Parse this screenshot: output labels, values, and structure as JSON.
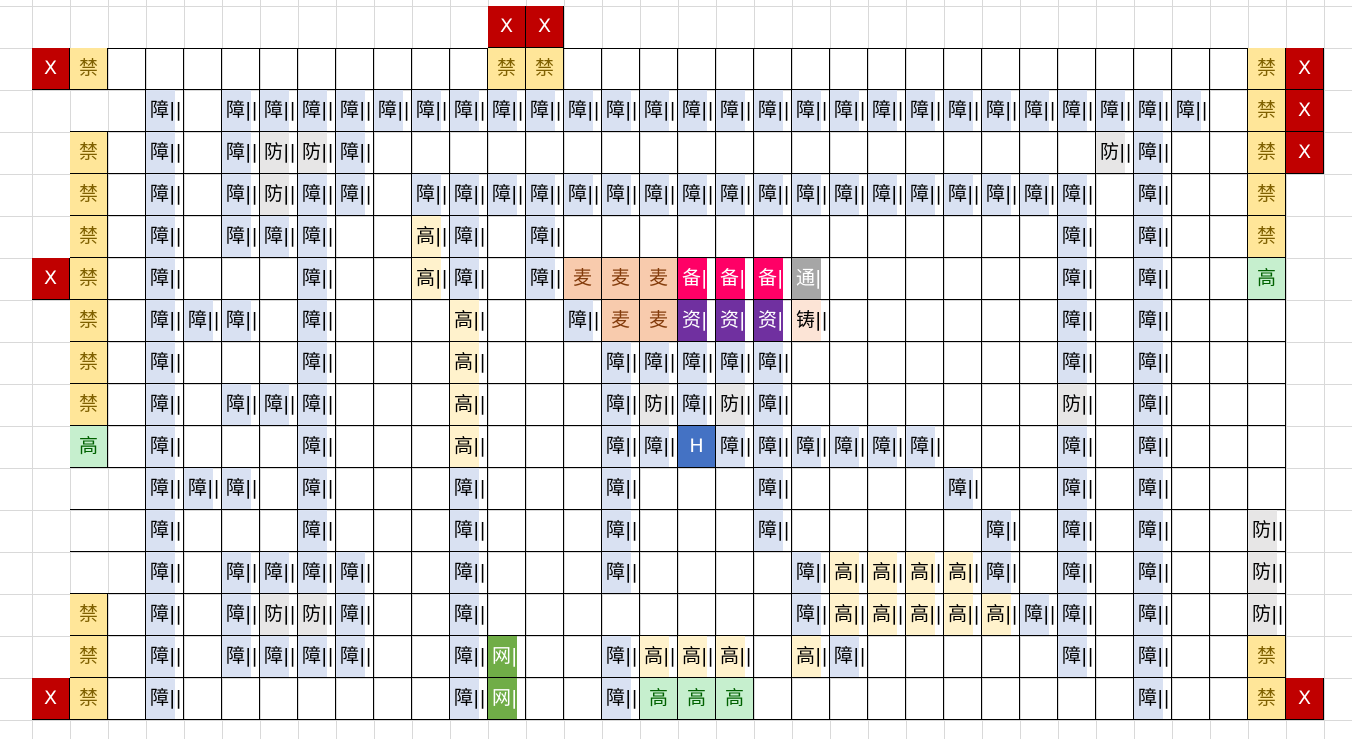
{
  "grid": {
    "cols": 34,
    "rows": [
      {
        "row": 0,
        "cells": {
          "12": "X",
          "13": "X"
        }
      },
      {
        "row": 1,
        "cells": {
          "0": "X",
          "1": "禁",
          "12": "禁",
          "13": "禁",
          "32": "禁",
          "33": "X"
        }
      },
      {
        "row": 2,
        "cells": {
          "3": "障",
          "5": "障",
          "6": "障",
          "7": "障",
          "8": "障",
          "9": "障",
          "10": "障",
          "11": "障",
          "12": "障",
          "13": "障",
          "14": "障",
          "15": "障",
          "16": "障",
          "17": "障",
          "18": "障",
          "19": "障",
          "20": "障",
          "21": "障",
          "22": "障",
          "23": "障",
          "24": "障",
          "25": "障",
          "26": "障",
          "27": "障",
          "28": "障",
          "29": "障",
          "30": "障",
          "32": "禁",
          "33": "X"
        }
      },
      {
        "row": 3,
        "cells": {
          "1": "禁",
          "3": "障",
          "5": "障",
          "6": "防",
          "7": "防",
          "8": "障",
          "28": "防",
          "29": "障",
          "32": "禁",
          "33": "X"
        }
      },
      {
        "row": 4,
        "cells": {
          "1": "禁",
          "3": "障",
          "5": "障",
          "6": "防",
          "7": "障",
          "8": "障",
          "10": "障",
          "11": "障",
          "12": "障",
          "13": "障",
          "14": "障",
          "15": "障",
          "16": "障",
          "17": "障",
          "18": "障",
          "19": "障",
          "20": "障",
          "21": "障",
          "22": "障",
          "23": "障",
          "24": "障",
          "25": "障",
          "26": "障",
          "27": "障",
          "29": "障",
          "32": "禁"
        }
      },
      {
        "row": 5,
        "cells": {
          "1": "禁",
          "3": "障",
          "5": "障",
          "6": "障",
          "7": "障",
          "10": "高",
          "11": "障",
          "13": "障",
          "27": "障",
          "29": "障",
          "32": "禁"
        }
      },
      {
        "row": 6,
        "cells": {
          "0": "X",
          "1": "禁",
          "3": "障",
          "7": "障",
          "10": "高",
          "11": "障",
          "13": "障",
          "14": "麦",
          "15": "麦",
          "16": "麦",
          "17": "备",
          "18": "备",
          "19": "备",
          "20": "通",
          "27": "障",
          "29": "障",
          "32": "高"
        }
      },
      {
        "row": 7,
        "cells": {
          "1": "禁",
          "3": "障",
          "4": "障",
          "5": "障",
          "7": "障",
          "11": "高",
          "14": "障",
          "15": "麦",
          "16": "麦",
          "17": "资",
          "18": "资",
          "19": "资",
          "20": "铸",
          "27": "障",
          "29": "障"
        }
      },
      {
        "row": 8,
        "cells": {
          "1": "禁",
          "3": "障",
          "7": "障",
          "11": "高",
          "15": "障",
          "16": "障",
          "17": "障",
          "18": "障",
          "19": "障",
          "27": "障",
          "29": "障"
        }
      },
      {
        "row": 9,
        "cells": {
          "1": "禁",
          "3": "障",
          "5": "障",
          "6": "障",
          "7": "障",
          "11": "高",
          "15": "障",
          "16": "防",
          "17": "障",
          "18": "防",
          "19": "障",
          "27": "防",
          "29": "障"
        }
      },
      {
        "row": 10,
        "cells": {
          "1": "高",
          "3": "障",
          "7": "障",
          "11": "高",
          "15": "障",
          "16": "障",
          "17": "H",
          "18": "障",
          "19": "障",
          "20": "障",
          "21": "障",
          "22": "障",
          "23": "障",
          "27": "障",
          "29": "障"
        }
      },
      {
        "row": 11,
        "cells": {
          "3": "障",
          "4": "障",
          "5": "障",
          "7": "障",
          "11": "障",
          "15": "障",
          "19": "障",
          "24": "障",
          "27": "障",
          "29": "障"
        }
      },
      {
        "row": 12,
        "cells": {
          "3": "障",
          "7": "障",
          "11": "障",
          "15": "障",
          "19": "障",
          "25": "障",
          "27": "障",
          "29": "障",
          "32": "防"
        }
      },
      {
        "row": 13,
        "cells": {
          "3": "障",
          "5": "障",
          "6": "障",
          "7": "障",
          "8": "障",
          "11": "障",
          "15": "障",
          "20": "障",
          "21": "高",
          "22": "高",
          "23": "高",
          "24": "高",
          "25": "障",
          "27": "障",
          "29": "障",
          "32": "防"
        }
      },
      {
        "row": 14,
        "cells": {
          "1": "禁",
          "3": "障",
          "5": "障",
          "6": "防",
          "7": "防",
          "8": "障",
          "11": "障",
          "20": "障",
          "21": "高",
          "22": "高",
          "23": "高",
          "24": "高",
          "25": "高",
          "26": "障",
          "27": "障",
          "29": "障",
          "32": "防"
        }
      },
      {
        "row": 15,
        "cells": {
          "1": "禁",
          "3": "障",
          "5": "障",
          "6": "障",
          "7": "障",
          "8": "障",
          "11": "障",
          "12": "网",
          "15": "障",
          "16": "高",
          "17": "高",
          "18": "高",
          "20": "高",
          "21": "障",
          "27": "障",
          "29": "障",
          "32": "禁"
        }
      },
      {
        "row": 16,
        "cells": {
          "0": "X",
          "1": "禁",
          "3": "障",
          "11": "障",
          "12": "网",
          "15": "障",
          "16": "高",
          "17": "高",
          "18": "高",
          "29": "障",
          "32": "禁",
          "33": "X"
        }
      }
    ]
  },
  "palette": {
    "X": "#c00000",
    "禁": "#ffe699",
    "障": "#d9e1f2",
    "防": "#e7e6e6",
    "高": "#fff2cc",
    "高-green": "#c6efce",
    "麦": "#f8cbad",
    "备": "#ff0066",
    "资": "#7030a0",
    "通": "#a6a6a6",
    "铸": "#fce4d6",
    "H": "#4472c4",
    "网": "#70ad47"
  },
  "strip_marker": "||"
}
